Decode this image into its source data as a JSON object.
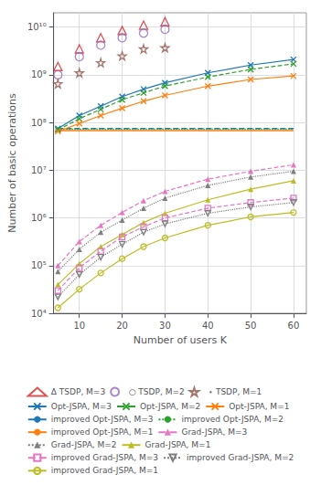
{
  "chart_data": {
    "type": "line",
    "xlabel": "Number of users K",
    "ylabel": "Number of basic operations",
    "x": [
      5,
      10,
      15,
      20,
      25,
      30,
      40,
      50,
      60
    ],
    "xlim": [
      4,
      63
    ],
    "xticks": [
      10,
      20,
      30,
      40,
      50,
      60
    ],
    "ylim": [
      10000,
      20000000000
    ],
    "yticks": [
      {
        "value": 10000,
        "label": "10⁴"
      },
      {
        "value": 100000,
        "label": "10⁵"
      },
      {
        "value": 1000000,
        "label": "10⁶"
      },
      {
        "value": 10000000,
        "label": "10⁷"
      },
      {
        "value": 100000000,
        "label": "10⁸"
      },
      {
        "value": 1000000000,
        "label": "10⁹"
      },
      {
        "value": 10000000000,
        "label": "10¹⁰"
      }
    ],
    "log": "y",
    "grid": true,
    "legend": "bottom",
    "series": [
      {
        "name": "Δ TSDP, M=3",
        "type": "scatter",
        "color": "#d62728",
        "marker": "open_triangle",
        "values": [
          1500000000.0,
          3500000000.0,
          6000000000.0,
          8500000000.0,
          11000000000.0,
          13000000000.0,
          null,
          null,
          null
        ]
      },
      {
        "name": "○ TSDP, M=2",
        "type": "scatter",
        "color": "#9467bd",
        "marker": "open_circle",
        "values": [
          1000000000.0,
          2400000000.0,
          4200000000.0,
          6000000000.0,
          7500000000.0,
          9000000000.0,
          null,
          null,
          null
        ]
      },
      {
        "name": "⋆ TSDP, M=1",
        "type": "scatter",
        "color": "#8c564b",
        "marker": "open_star",
        "values": [
          650000000.0,
          1100000000.0,
          1800000000.0,
          2500000000.0,
          3500000000.0,
          3700000000.0,
          null,
          null,
          null
        ]
      },
      {
        "name": "Opt-JSPA, M=3",
        "type": "line",
        "color": "#1f77b4",
        "marker": "x",
        "line_style": "solid",
        "values": [
          75000000.0,
          140000000.0,
          220000000.0,
          350000000.0,
          500000000.0,
          680000000.0,
          1100000000.0,
          1600000000.0,
          2100000000.0
        ]
      },
      {
        "name": "Opt-JSPA, M=2",
        "type": "line",
        "color": "#2ca02c",
        "marker": "x",
        "line_style": "dashed",
        "values": [
          70000000.0,
          120000000.0,
          190000000.0,
          300000000.0,
          420000000.0,
          580000000.0,
          900000000.0,
          1300000000.0,
          1700000000.0
        ]
      },
      {
        "name": "Opt-JSPA, M=1",
        "type": "line",
        "color": "#ff7f0e",
        "marker": "x",
        "line_style": "solid",
        "values": [
          65000000.0,
          95000000.0,
          140000000.0,
          200000000.0,
          280000000.0,
          370000000.0,
          580000000.0,
          800000000.0,
          950000000.0
        ]
      },
      {
        "name": "improved Opt-JSPA, M=3",
        "type": "line",
        "color": "#1f77b4",
        "marker": "none",
        "line_style": "dashed",
        "values": [
          75000000.0,
          75000000.0,
          75000000.0,
          75000000.0,
          75000000.0,
          75000000.0,
          75000000.0,
          75000000.0,
          75000000.0
        ]
      },
      {
        "name": "improved Opt-JSPA, M=2",
        "type": "line",
        "color": "#2ca02c",
        "marker": "none",
        "line_style": "dotted",
        "values": [
          72000000.0,
          72000000.0,
          72000000.0,
          72000000.0,
          72000000.0,
          72000000.0,
          72000000.0,
          72000000.0,
          72000000.0
        ]
      },
      {
        "name": "improved Opt-JSPA, M=1",
        "type": "line",
        "color": "#ff7f0e",
        "marker": "none",
        "line_style": "solid",
        "values": [
          68000000.0,
          68000000.0,
          68000000.0,
          68000000.0,
          68000000.0,
          68000000.0,
          68000000.0,
          68000000.0,
          68000000.0
        ]
      },
      {
        "name": "Grad-JSPA, M=3",
        "type": "line",
        "color": "#e377c2",
        "marker": "triangle",
        "line_style": "dashed",
        "values": [
          100000.0,
          320000.0,
          700000.0,
          1300000.0,
          2300000.0,
          3600000.0,
          6500000.0,
          9500000.0,
          13000000.0
        ]
      },
      {
        "name": "Grad-JSPA, M=2",
        "type": "line",
        "color": "#7f7f7f",
        "marker": "triangle",
        "line_style": "dotted",
        "values": [
          75000.0,
          220000.0,
          500000.0,
          900000.0,
          1600000.0,
          2600000.0,
          4800000.0,
          7200000.0,
          9500000.0
        ]
      },
      {
        "name": "Grad-JSPA, M=1",
        "type": "line",
        "color": "#bcbd22",
        "marker": "triangle",
        "line_style": "solid",
        "values": [
          40000.0,
          110000.0,
          250000.0,
          450000.0,
          800000.0,
          1250000.0,
          2400000.0,
          4000000.0,
          6000000.0
        ]
      },
      {
        "name": "improved Grad-JSPA, M=3",
        "type": "line",
        "color": "#e377c2",
        "marker": "open_square",
        "line_style": "dashed",
        "values": [
          30000.0,
          90000.0,
          200000.0,
          400000.0,
          650000.0,
          1000000.0,
          1600000.0,
          2100000.0,
          2600000.0
        ]
      },
      {
        "name": "improved Grad-JSPA, M=2",
        "type": "line",
        "color": "#7f7f7f",
        "marker": "open_triangle_down",
        "line_style": "dotted",
        "values": [
          22000.0,
          65000.0,
          150000.0,
          280000.0,
          500000.0,
          750000.0,
          1250000.0,
          1700000.0,
          2100000.0
        ]
      },
      {
        "name": "improved Grad-JSPA, M=1",
        "type": "line",
        "color": "#bcbd22",
        "marker": "open_circle",
        "line_style": "solid",
        "values": [
          13000.0,
          32000.0,
          70000.0,
          140000.0,
          250000.0,
          380000.0,
          700000.0,
          1050000.0,
          1300000.0
        ]
      }
    ]
  }
}
